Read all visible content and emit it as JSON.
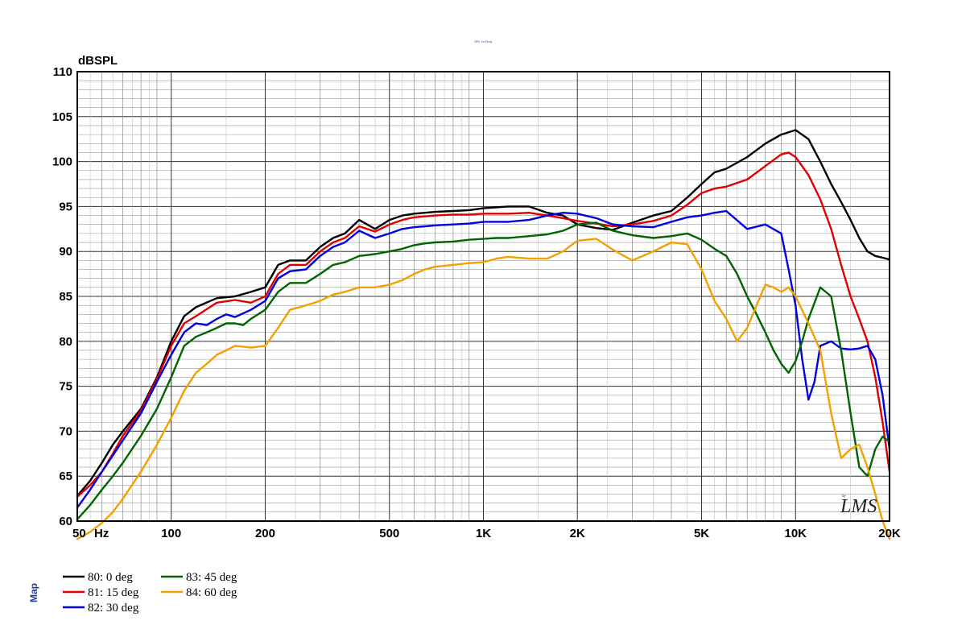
{
  "page_note": "SPL vs Freq",
  "logo": {
    "text": "LMS",
    "sub": "by"
  },
  "side_label": "Map",
  "chart_data": {
    "type": "line",
    "title": "",
    "xlabel": "Hz",
    "ylabel": "dBSPL",
    "x_scale": "log",
    "xlim": [
      50,
      20000
    ],
    "ylim": [
      60,
      110
    ],
    "grid": true,
    "y_ticks": [
      60,
      65,
      70,
      75,
      80,
      85,
      90,
      95,
      100,
      105,
      110
    ],
    "y_tick_labels": [
      "60",
      "65",
      "70",
      "75",
      "80",
      "85",
      "90",
      "95",
      "100",
      "105",
      "110"
    ],
    "x_ticks": [
      50,
      100,
      200,
      500,
      1000,
      2000,
      5000,
      10000,
      20000
    ],
    "x_tick_labels": [
      "50",
      "100",
      "200",
      "500",
      "1K",
      "2K",
      "5K",
      "10K",
      "20K"
    ],
    "legend_position": "bottom-left",
    "series": [
      {
        "name": "80: 0 deg",
        "color": "#000000",
        "x": [
          50,
          55,
          60,
          65,
          70,
          80,
          90,
          100,
          110,
          120,
          140,
          160,
          180,
          200,
          220,
          240,
          270,
          300,
          330,
          360,
          400,
          450,
          500,
          550,
          600,
          650,
          700,
          800,
          900,
          1000,
          1200,
          1400,
          1600,
          1800,
          2000,
          2300,
          2600,
          3000,
          3500,
          4000,
          4500,
          5000,
          5500,
          6000,
          7000,
          8000,
          9000,
          10000,
          11000,
          12000,
          13000,
          14000,
          15000,
          16000,
          17000,
          18000,
          19000,
          20000
        ],
        "y": [
          62.8,
          64.5,
          66.5,
          68.5,
          70,
          72.5,
          76,
          80,
          82.8,
          83.8,
          84.8,
          85,
          85.5,
          86,
          88.5,
          89,
          89,
          90.5,
          91.5,
          92,
          93.5,
          92.5,
          93.5,
          94,
          94.2,
          94.3,
          94.4,
          94.5,
          94.6,
          94.8,
          95,
          95,
          94.3,
          94,
          93,
          92.6,
          92.4,
          93.2,
          94,
          94.5,
          96,
          97.5,
          98.8,
          99.2,
          100.5,
          102,
          103,
          103.5,
          102.5,
          100,
          97.5,
          95.5,
          93.5,
          91.5,
          90,
          89.5,
          89.3,
          89.1
        ]
      },
      {
        "name": "81: 15 deg",
        "color": "#e00000",
        "x": [
          50,
          55,
          60,
          65,
          70,
          80,
          90,
          100,
          110,
          120,
          140,
          160,
          180,
          200,
          220,
          240,
          270,
          300,
          330,
          360,
          400,
          450,
          500,
          550,
          600,
          650,
          700,
          800,
          900,
          1000,
          1200,
          1400,
          1600,
          1800,
          2000,
          2300,
          2600,
          3000,
          3500,
          4000,
          4500,
          5000,
          5500,
          6000,
          7000,
          8000,
          9000,
          9500,
          10000,
          11000,
          12000,
          13000,
          14000,
          15000,
          16000,
          17000,
          18000,
          19000,
          20000
        ],
        "y": [
          62.7,
          64,
          65.5,
          67.5,
          69.5,
          72.3,
          75.8,
          79.5,
          82,
          82.8,
          84.3,
          84.6,
          84.3,
          85,
          87.5,
          88.5,
          88.5,
          90,
          91,
          91.5,
          92.8,
          92.2,
          93,
          93.5,
          93.8,
          93.9,
          94,
          94.1,
          94.1,
          94.2,
          94.2,
          94.3,
          94,
          93.7,
          93.4,
          93.1,
          92.8,
          93,
          93.4,
          94,
          95.2,
          96.5,
          97,
          97.2,
          98,
          99.5,
          100.8,
          101,
          100.5,
          98.5,
          95.8,
          92.5,
          88.5,
          85,
          82.5,
          80,
          76,
          71,
          65.5
        ]
      },
      {
        "name": "82: 30 deg",
        "color": "#0000e0",
        "x": [
          50,
          55,
          60,
          65,
          70,
          80,
          90,
          100,
          110,
          120,
          130,
          140,
          150,
          160,
          180,
          200,
          220,
          240,
          270,
          300,
          330,
          360,
          400,
          450,
          500,
          550,
          600,
          650,
          700,
          800,
          900,
          1000,
          1200,
          1400,
          1600,
          1800,
          2000,
          2300,
          2600,
          3000,
          3500,
          4000,
          4500,
          5000,
          5500,
          6000,
          7000,
          8000,
          9000,
          9500,
          10000,
          10500,
          11000,
          11500,
          12000,
          13000,
          14000,
          15000,
          16000,
          17000,
          18000,
          19000,
          20000
        ],
        "y": [
          61.5,
          63.5,
          65.5,
          67.3,
          69,
          72,
          75.5,
          78.5,
          81,
          82,
          81.8,
          82.5,
          83,
          82.7,
          83.5,
          84.5,
          87,
          87.8,
          88,
          89.5,
          90.5,
          91,
          92.3,
          91.5,
          92,
          92.5,
          92.7,
          92.8,
          92.9,
          93,
          93.1,
          93.3,
          93.3,
          93.5,
          94,
          94.3,
          94.2,
          93.7,
          93,
          92.8,
          92.7,
          93.3,
          93.8,
          94,
          94.3,
          94.5,
          92.5,
          93,
          92,
          88,
          84,
          78,
          73.5,
          75.5,
          79.5,
          80,
          79.2,
          79.1,
          79.2,
          79.5,
          78,
          74,
          68
        ]
      },
      {
        "name": "83: 45 deg",
        "color": "#006400",
        "x": [
          50,
          55,
          60,
          65,
          70,
          80,
          90,
          100,
          110,
          120,
          130,
          140,
          150,
          160,
          170,
          180,
          200,
          220,
          240,
          270,
          300,
          330,
          360,
          400,
          450,
          500,
          550,
          600,
          650,
          700,
          800,
          900,
          1000,
          1100,
          1200,
          1400,
          1600,
          1800,
          2000,
          2300,
          2600,
          3000,
          3500,
          4000,
          4500,
          5000,
          5500,
          6000,
          6500,
          7000,
          7500,
          8000,
          8500,
          9000,
          9500,
          10000,
          10500,
          11000,
          12000,
          13000,
          14000,
          15000,
          16000,
          17000,
          18000,
          19000,
          20000
        ],
        "y": [
          60.2,
          61.8,
          63.5,
          65,
          66.5,
          69.5,
          72.5,
          76,
          79.5,
          80.5,
          81,
          81.5,
          82,
          82,
          81.8,
          82.5,
          83.5,
          85.5,
          86.5,
          86.5,
          87.5,
          88.5,
          88.8,
          89.5,
          89.7,
          90,
          90.3,
          90.7,
          90.9,
          91,
          91.1,
          91.3,
          91.4,
          91.5,
          91.5,
          91.7,
          91.9,
          92.3,
          93,
          93.2,
          92.3,
          91.8,
          91.5,
          91.7,
          92,
          91.3,
          90.3,
          89.5,
          87.5,
          85,
          83,
          81,
          79,
          77.5,
          76.5,
          77.8,
          80,
          82.5,
          86,
          85,
          79,
          72,
          66,
          65,
          68,
          69.4,
          68.8
        ]
      },
      {
        "name": "84: 60 deg",
        "color": "#f5a000",
        "x": [
          50,
          55,
          60,
          65,
          70,
          80,
          90,
          100,
          110,
          120,
          130,
          140,
          150,
          160,
          180,
          200,
          220,
          240,
          270,
          300,
          330,
          360,
          400,
          450,
          500,
          550,
          600,
          650,
          700,
          800,
          900,
          1000,
          1100,
          1200,
          1400,
          1600,
          1800,
          2000,
          2300,
          2600,
          3000,
          3500,
          4000,
          4500,
          5000,
          5500,
          6000,
          6500,
          7000,
          7500,
          8000,
          8500,
          9000,
          9500,
          10000,
          11000,
          12000,
          13000,
          14000,
          15000,
          16000,
          17000,
          18000,
          19000,
          20000
        ],
        "y": [
          58,
          58.8,
          59.8,
          61,
          62.5,
          65.5,
          68.5,
          71.5,
          74.5,
          76.5,
          77.5,
          78.5,
          79,
          79.5,
          79.3,
          79.5,
          81.5,
          83.5,
          84,
          84.5,
          85.2,
          85.5,
          86,
          86,
          86.3,
          86.8,
          87.5,
          88,
          88.3,
          88.5,
          88.7,
          88.8,
          89.2,
          89.4,
          89.2,
          89.2,
          90,
          91.2,
          91.4,
          90.2,
          89,
          90,
          91,
          90.8,
          88,
          84.5,
          82.5,
          80,
          81.5,
          84,
          86.3,
          86,
          85.5,
          86,
          85,
          82,
          79,
          72,
          67,
          68,
          68.5,
          66,
          63,
          60,
          58
        ]
      }
    ]
  }
}
